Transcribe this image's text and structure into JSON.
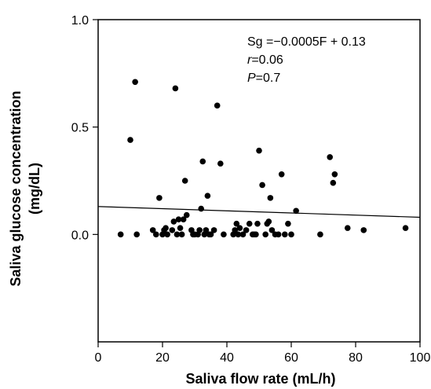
{
  "chart_data": {
    "type": "scatter",
    "xlabel": "Saliva flow rate (mL/h)",
    "ylabel_line1": "Saliva glucose concentration",
    "ylabel_line2": "(mg/dL)",
    "xlim": [
      0,
      100
    ],
    "ylim": [
      -0.5,
      1.0
    ],
    "x_ticks": [
      "0",
      "20",
      "40",
      "60",
      "80",
      "100"
    ],
    "y_ticks": [
      "0.0",
      "0.5",
      "1.0"
    ],
    "grid": false,
    "point_color": "#000000",
    "regression_line": {
      "slope": -0.0005,
      "intercept": 0.13
    },
    "annotations": {
      "equation": "Sg =−0.0005F + 0.13",
      "r_symbol": "r",
      "r_value": "=0.06",
      "p_symbol": "P",
      "p_value": "=0.7"
    },
    "points": [
      [
        7,
        0.0
      ],
      [
        10,
        0.44
      ],
      [
        11.5,
        0.71
      ],
      [
        12,
        0.0
      ],
      [
        17,
        0.02
      ],
      [
        18,
        0.0
      ],
      [
        19,
        0.17
      ],
      [
        20,
        0.0
      ],
      [
        20.5,
        0.02
      ],
      [
        21,
        0.03
      ],
      [
        21.5,
        0.0
      ],
      [
        23,
        0.02
      ],
      [
        23.5,
        0.06
      ],
      [
        24,
        0.68
      ],
      [
        24.5,
        0.0
      ],
      [
        25,
        0.07
      ],
      [
        25.5,
        0.03
      ],
      [
        26,
        0.0
      ],
      [
        26.5,
        0.07
      ],
      [
        27,
        0.25
      ],
      [
        27.5,
        0.09
      ],
      [
        29,
        0.02
      ],
      [
        29.5,
        0.0
      ],
      [
        30,
        0.0
      ],
      [
        31,
        0.0
      ],
      [
        31.5,
        0.02
      ],
      [
        32,
        0.12
      ],
      [
        32.5,
        0.34
      ],
      [
        33,
        0.0
      ],
      [
        33.5,
        0.02
      ],
      [
        34,
        0.18
      ],
      [
        34.5,
        0.0
      ],
      [
        35,
        0.0
      ],
      [
        36,
        0.02
      ],
      [
        37,
        0.6
      ],
      [
        38,
        0.33
      ],
      [
        39,
        0.0
      ],
      [
        42,
        0.0
      ],
      [
        42.5,
        0.02
      ],
      [
        43,
        0.05
      ],
      [
        43.5,
        0.0
      ],
      [
        44,
        0.03
      ],
      [
        45,
        0.0
      ],
      [
        46,
        0.02
      ],
      [
        47,
        0.05
      ],
      [
        48,
        0.0
      ],
      [
        48.5,
        0.0
      ],
      [
        49,
        0.0
      ],
      [
        49.5,
        0.05
      ],
      [
        50,
        0.39
      ],
      [
        51,
        0.23
      ],
      [
        52,
        0.0
      ],
      [
        52.5,
        0.05
      ],
      [
        53,
        0.06
      ],
      [
        53.5,
        0.17
      ],
      [
        54,
        0.02
      ],
      [
        55,
        0.0
      ],
      [
        56,
        0.0
      ],
      [
        57,
        0.28
      ],
      [
        58,
        0.0
      ],
      [
        59,
        0.05
      ],
      [
        60,
        0.0
      ],
      [
        61.5,
        0.11
      ],
      [
        69,
        0.0
      ],
      [
        72,
        0.36
      ],
      [
        73,
        0.24
      ],
      [
        73.5,
        0.28
      ],
      [
        77.5,
        0.03
      ],
      [
        82.5,
        0.02
      ],
      [
        95.5,
        0.03
      ]
    ]
  }
}
